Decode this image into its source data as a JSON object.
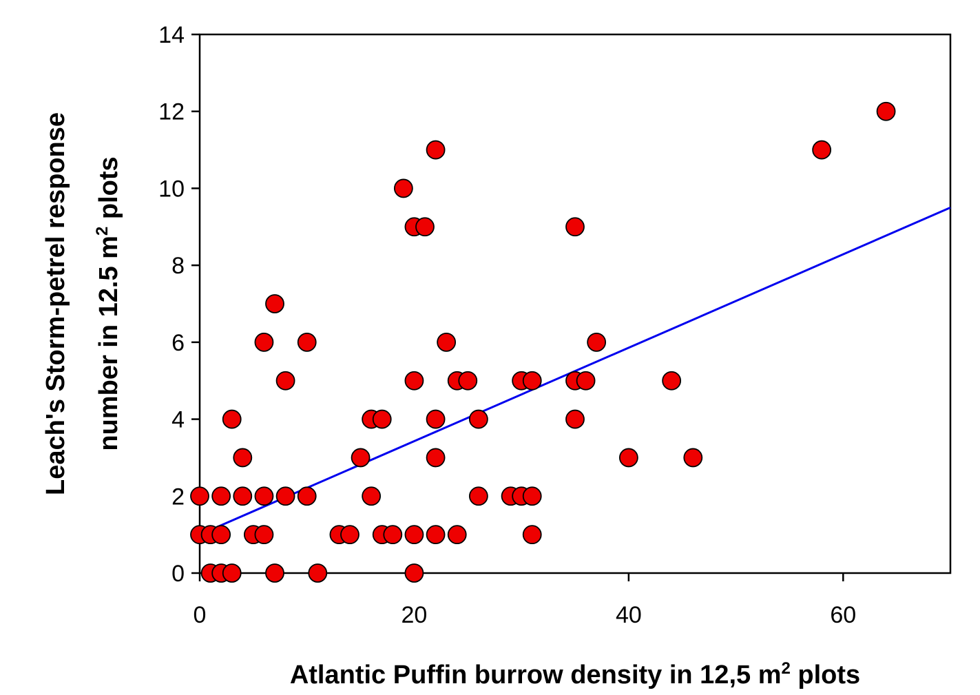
{
  "chart_data": {
    "type": "scatter",
    "title": "",
    "xlabel": {
      "pre": "Atlantic Puffin burrow density in 12,5 m",
      "sup": "2",
      "post": " plots"
    },
    "ylabel": {
      "line1": "Leach's Storm-petrel response",
      "line2_pre": "number in 12.5 m",
      "line2_sup": "2",
      "line2_post": " plots"
    },
    "xlim": [
      0,
      70
    ],
    "ylim": [
      0,
      14
    ],
    "xticks": [
      0,
      20,
      40,
      60
    ],
    "yticks": [
      0,
      2,
      4,
      6,
      8,
      10,
      12,
      14
    ],
    "grid": false,
    "legend": "none",
    "point_color": "#ee0000",
    "point_edge_color": "#000000",
    "line_color": "#0000ee",
    "series": [
      {
        "type": "scatter",
        "points": [
          [
            0,
            2
          ],
          [
            0,
            1
          ],
          [
            1,
            1
          ],
          [
            1,
            0
          ],
          [
            2,
            1
          ],
          [
            2,
            2
          ],
          [
            2,
            0
          ],
          [
            3,
            0
          ],
          [
            3,
            4
          ],
          [
            4,
            3
          ],
          [
            4,
            2
          ],
          [
            5,
            1
          ],
          [
            6,
            6
          ],
          [
            6,
            2
          ],
          [
            6,
            1
          ],
          [
            7,
            7
          ],
          [
            7,
            0
          ],
          [
            8,
            5
          ],
          [
            8,
            2
          ],
          [
            10,
            6
          ],
          [
            10,
            2
          ],
          [
            11,
            0
          ],
          [
            13,
            1
          ],
          [
            14,
            1
          ],
          [
            15,
            3
          ],
          [
            16,
            4
          ],
          [
            16,
            2
          ],
          [
            17,
            4
          ],
          [
            17,
            1
          ],
          [
            18,
            1
          ],
          [
            19,
            10
          ],
          [
            20,
            9
          ],
          [
            20,
            5
          ],
          [
            20,
            1
          ],
          [
            20,
            0
          ],
          [
            21,
            9
          ],
          [
            22,
            11
          ],
          [
            22,
            4
          ],
          [
            22,
            3
          ],
          [
            22,
            1
          ],
          [
            23,
            6
          ],
          [
            24,
            5
          ],
          [
            24,
            1
          ],
          [
            25,
            5
          ],
          [
            26,
            4
          ],
          [
            26,
            2
          ],
          [
            29,
            2
          ],
          [
            30,
            5
          ],
          [
            30,
            2
          ],
          [
            31,
            5
          ],
          [
            31,
            2
          ],
          [
            31,
            1
          ],
          [
            35,
            9
          ],
          [
            35,
            5
          ],
          [
            35,
            4
          ],
          [
            36,
            5
          ],
          [
            37,
            6
          ],
          [
            40,
            3
          ],
          [
            44,
            5
          ],
          [
            46,
            3
          ],
          [
            58,
            11
          ],
          [
            64,
            12
          ]
        ]
      },
      {
        "type": "line",
        "name": "regression",
        "points": [
          [
            0,
            1.0
          ],
          [
            70,
            9.5
          ]
        ]
      }
    ]
  }
}
